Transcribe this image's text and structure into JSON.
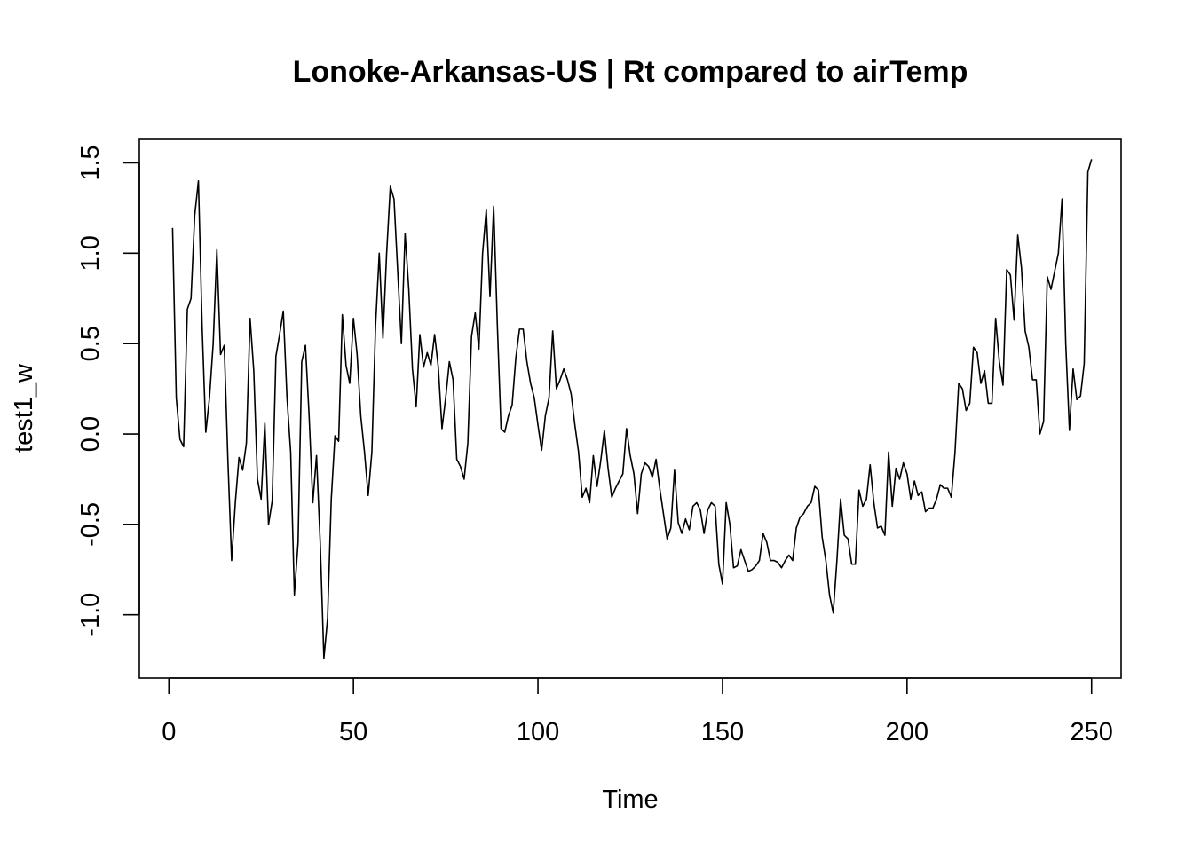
{
  "chart_data": {
    "type": "line",
    "title": "Lonoke-Arkansas-US | Rt compared to airTemp",
    "xlabel": "Time",
    "ylabel": "test1_w",
    "xlim": [
      -8,
      258
    ],
    "ylim": [
      -1.35,
      1.63
    ],
    "xticks": [
      0,
      50,
      100,
      150,
      200,
      250
    ],
    "xtick_labels": [
      "0",
      "50",
      "100",
      "150",
      "200",
      "250"
    ],
    "yticks": [
      -1.0,
      -0.5,
      0.0,
      0.5,
      1.0,
      1.5
    ],
    "ytick_labels": [
      "-1.0",
      "-0.5",
      "0.0",
      "0.5",
      "1.0",
      "1.5"
    ],
    "grid": false,
    "series": [
      {
        "x_start": 1,
        "values": [
          1.14,
          0.2,
          -0.03,
          -0.07,
          0.69,
          0.75,
          1.21,
          1.4,
          0.6,
          0.01,
          0.2,
          0.5,
          1.02,
          0.44,
          0.49,
          -0.15,
          -0.7,
          -0.38,
          -0.13,
          -0.2,
          -0.05,
          0.64,
          0.35,
          -0.25,
          -0.36,
          0.06,
          -0.5,
          -0.37,
          0.43,
          0.55,
          0.68,
          0.2,
          -0.1,
          -0.89,
          -0.6,
          0.4,
          0.49,
          0.1,
          -0.38,
          -0.12,
          -0.6,
          -1.24,
          -1.02,
          -0.36,
          -0.01,
          -0.04,
          0.66,
          0.38,
          0.28,
          0.64,
          0.44,
          0.1,
          -0.1,
          -0.34,
          -0.1,
          0.6,
          1.0,
          0.53,
          1.0,
          1.37,
          1.3,
          0.9,
          0.5,
          1.11,
          0.8,
          0.36,
          0.15,
          0.55,
          0.37,
          0.45,
          0.38,
          0.55,
          0.37,
          0.03,
          0.2,
          0.4,
          0.3,
          -0.14,
          -0.18,
          -0.25,
          -0.05,
          0.54,
          0.67,
          0.47,
          1.0,
          1.24,
          0.76,
          1.26,
          0.6,
          0.03,
          0.01,
          0.1,
          0.16,
          0.42,
          0.58,
          0.58,
          0.4,
          0.28,
          0.2,
          0.05,
          -0.09,
          0.1,
          0.2,
          0.57,
          0.25,
          0.3,
          0.36,
          0.3,
          0.22,
          0.05,
          -0.1,
          -0.35,
          -0.3,
          -0.38,
          -0.12,
          -0.29,
          -0.15,
          0.02,
          -0.19,
          -0.35,
          -0.3,
          -0.26,
          -0.22,
          0.03,
          -0.12,
          -0.22,
          -0.44,
          -0.22,
          -0.16,
          -0.18,
          -0.24,
          -0.14,
          -0.3,
          -0.44,
          -0.58,
          -0.52,
          -0.2,
          -0.49,
          -0.55,
          -0.47,
          -0.53,
          -0.4,
          -0.38,
          -0.42,
          -0.55,
          -0.42,
          -0.38,
          -0.4,
          -0.72,
          -0.83,
          -0.38,
          -0.5,
          -0.74,
          -0.73,
          -0.64,
          -0.7,
          -0.76,
          -0.75,
          -0.73,
          -0.7,
          -0.55,
          -0.6,
          -0.7,
          -0.7,
          -0.71,
          -0.74,
          -0.7,
          -0.67,
          -0.7,
          -0.52,
          -0.46,
          -0.44,
          -0.4,
          -0.38,
          -0.29,
          -0.31,
          -0.57,
          -0.7,
          -0.89,
          -0.99,
          -0.7,
          -0.36,
          -0.56,
          -0.58,
          -0.72,
          -0.72,
          -0.31,
          -0.4,
          -0.36,
          -0.17,
          -0.38,
          -0.52,
          -0.51,
          -0.56,
          -0.1,
          -0.4,
          -0.19,
          -0.25,
          -0.16,
          -0.22,
          -0.36,
          -0.26,
          -0.34,
          -0.32,
          -0.43,
          -0.41,
          -0.41,
          -0.36,
          -0.28,
          -0.3,
          -0.3,
          -0.35,
          -0.1,
          0.28,
          0.25,
          0.13,
          0.17,
          0.48,
          0.45,
          0.28,
          0.35,
          0.17,
          0.17,
          0.64,
          0.4,
          0.27,
          0.91,
          0.88,
          0.63,
          1.1,
          0.92,
          0.57,
          0.48,
          0.3,
          0.3,
          0.0,
          0.07,
          0.87,
          0.8,
          0.9,
          1.0,
          1.3,
          0.5,
          0.02,
          0.36,
          0.19,
          0.21,
          0.39,
          1.45,
          1.52
        ]
      }
    ]
  }
}
